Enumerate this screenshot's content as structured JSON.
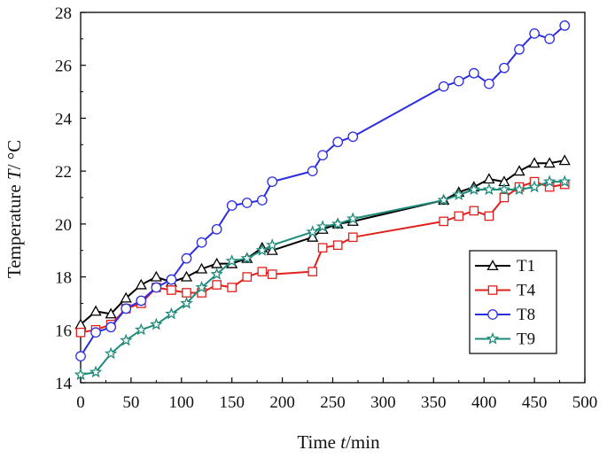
{
  "chart_data": {
    "type": "line",
    "xlabel_prefix": "Time ",
    "xlabel_var": "t",
    "xlabel_suffix": "/min",
    "ylabel_prefix": "Temperature ",
    "ylabel_var": "T",
    "ylabel_suffix": "/ °C",
    "xlim": [
      0,
      500
    ],
    "ylim": [
      14,
      28
    ],
    "xticks": [
      0,
      50,
      100,
      150,
      200,
      250,
      300,
      350,
      400,
      450,
      500
    ],
    "yticks": [
      14,
      16,
      18,
      20,
      22,
      24,
      26,
      28
    ],
    "grid": false,
    "legend_position": "right",
    "series": [
      {
        "name": "T1",
        "color": "#000000",
        "marker": "triangle",
        "x": [
          0,
          15,
          30,
          45,
          60,
          75,
          90,
          105,
          120,
          135,
          150,
          165,
          180,
          190,
          230,
          240,
          255,
          270,
          360,
          375,
          390,
          405,
          420,
          435,
          450,
          465,
          480
        ],
        "y": [
          16.2,
          16.7,
          16.6,
          17.2,
          17.7,
          18.0,
          17.8,
          18.0,
          18.3,
          18.5,
          18.5,
          18.7,
          19.1,
          19.0,
          19.5,
          19.8,
          20.0,
          20.1,
          20.9,
          21.2,
          21.4,
          21.7,
          21.6,
          22.0,
          22.3,
          22.3,
          22.4
        ]
      },
      {
        "name": "T4",
        "color": "#e0201c",
        "marker": "square",
        "x": [
          0,
          15,
          30,
          45,
          60,
          75,
          90,
          105,
          120,
          135,
          150,
          165,
          180,
          190,
          230,
          240,
          255,
          270,
          360,
          375,
          390,
          405,
          420,
          435,
          450,
          465,
          480
        ],
        "y": [
          15.9,
          16.0,
          16.2,
          16.8,
          17.0,
          17.6,
          17.5,
          17.4,
          17.4,
          17.7,
          17.6,
          18.0,
          18.2,
          18.1,
          18.2,
          19.1,
          19.2,
          19.5,
          20.1,
          20.3,
          20.5,
          20.3,
          21.0,
          21.4,
          21.6,
          21.4,
          21.5
        ]
      },
      {
        "name": "T8",
        "color": "#2b2ee0",
        "marker": "circle",
        "x": [
          0,
          15,
          30,
          45,
          60,
          75,
          90,
          105,
          120,
          135,
          150,
          165,
          180,
          190,
          230,
          240,
          255,
          270,
          360,
          375,
          390,
          405,
          420,
          435,
          450,
          465,
          480
        ],
        "y": [
          15.0,
          15.9,
          16.1,
          16.8,
          17.1,
          17.6,
          17.9,
          18.7,
          19.3,
          19.8,
          20.7,
          20.8,
          20.9,
          21.6,
          22.0,
          22.6,
          23.1,
          23.3,
          25.2,
          25.4,
          25.7,
          25.3,
          25.9,
          26.6,
          27.2,
          27.0,
          27.5
        ]
      },
      {
        "name": "T9",
        "color": "#1f8a7a",
        "marker": "star",
        "x": [
          0,
          15,
          30,
          45,
          60,
          75,
          90,
          105,
          120,
          135,
          150,
          165,
          180,
          190,
          230,
          240,
          255,
          270,
          360,
          375,
          390,
          405,
          420,
          435,
          450,
          465,
          480
        ],
        "y": [
          14.3,
          14.4,
          15.1,
          15.6,
          16.0,
          16.2,
          16.6,
          17.0,
          17.6,
          18.1,
          18.6,
          18.7,
          19.0,
          19.2,
          19.7,
          19.9,
          20.0,
          20.2,
          20.9,
          21.1,
          21.3,
          21.3,
          21.3,
          21.3,
          21.4,
          21.6,
          21.6
        ]
      }
    ]
  }
}
